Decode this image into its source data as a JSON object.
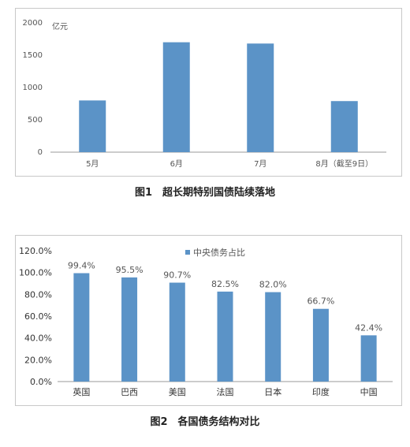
{
  "chart_data": [
    {
      "type": "bar",
      "title": "",
      "unit_label": "亿元",
      "categories": [
        "5月",
        "6月",
        "7月",
        "8月（截至9日）"
      ],
      "values": [
        800,
        1700,
        1680,
        790
      ],
      "ylim": [
        0,
        2000
      ],
      "yticks": [
        "2000",
        "1500",
        "1000",
        "500",
        "0"
      ],
      "ytick_values": [
        2000,
        1500,
        1000,
        500,
        0
      ],
      "grid": false,
      "bar_color": "#5b93c7"
    },
    {
      "type": "bar",
      "title": "",
      "categories": [
        "英国",
        "巴西",
        "美国",
        "法国",
        "日本",
        "印度",
        "中国"
      ],
      "values": [
        99.4,
        95.5,
        90.7,
        82.5,
        82.0,
        66.7,
        42.4
      ],
      "data_labels": [
        "99.4%",
        "95.5%",
        "90.7%",
        "82.5%",
        "82.0%",
        "66.7%",
        "42.4%"
      ],
      "ylim": [
        0,
        120
      ],
      "yticks": [
        "120.0%",
        "100.0%",
        "80.0%",
        "60.0%",
        "40.0%",
        "20.0%",
        "0.0%"
      ],
      "ytick_values": [
        120,
        100,
        80,
        60,
        40,
        20,
        0
      ],
      "legend": "中央债务占比",
      "legend_position": "top-center",
      "grid": false,
      "bar_color": "#5b93c7"
    }
  ],
  "captions": {
    "fig1": "图1　超长期特别国债陆续落地",
    "fig2": "图2　各国债务结构对比"
  }
}
